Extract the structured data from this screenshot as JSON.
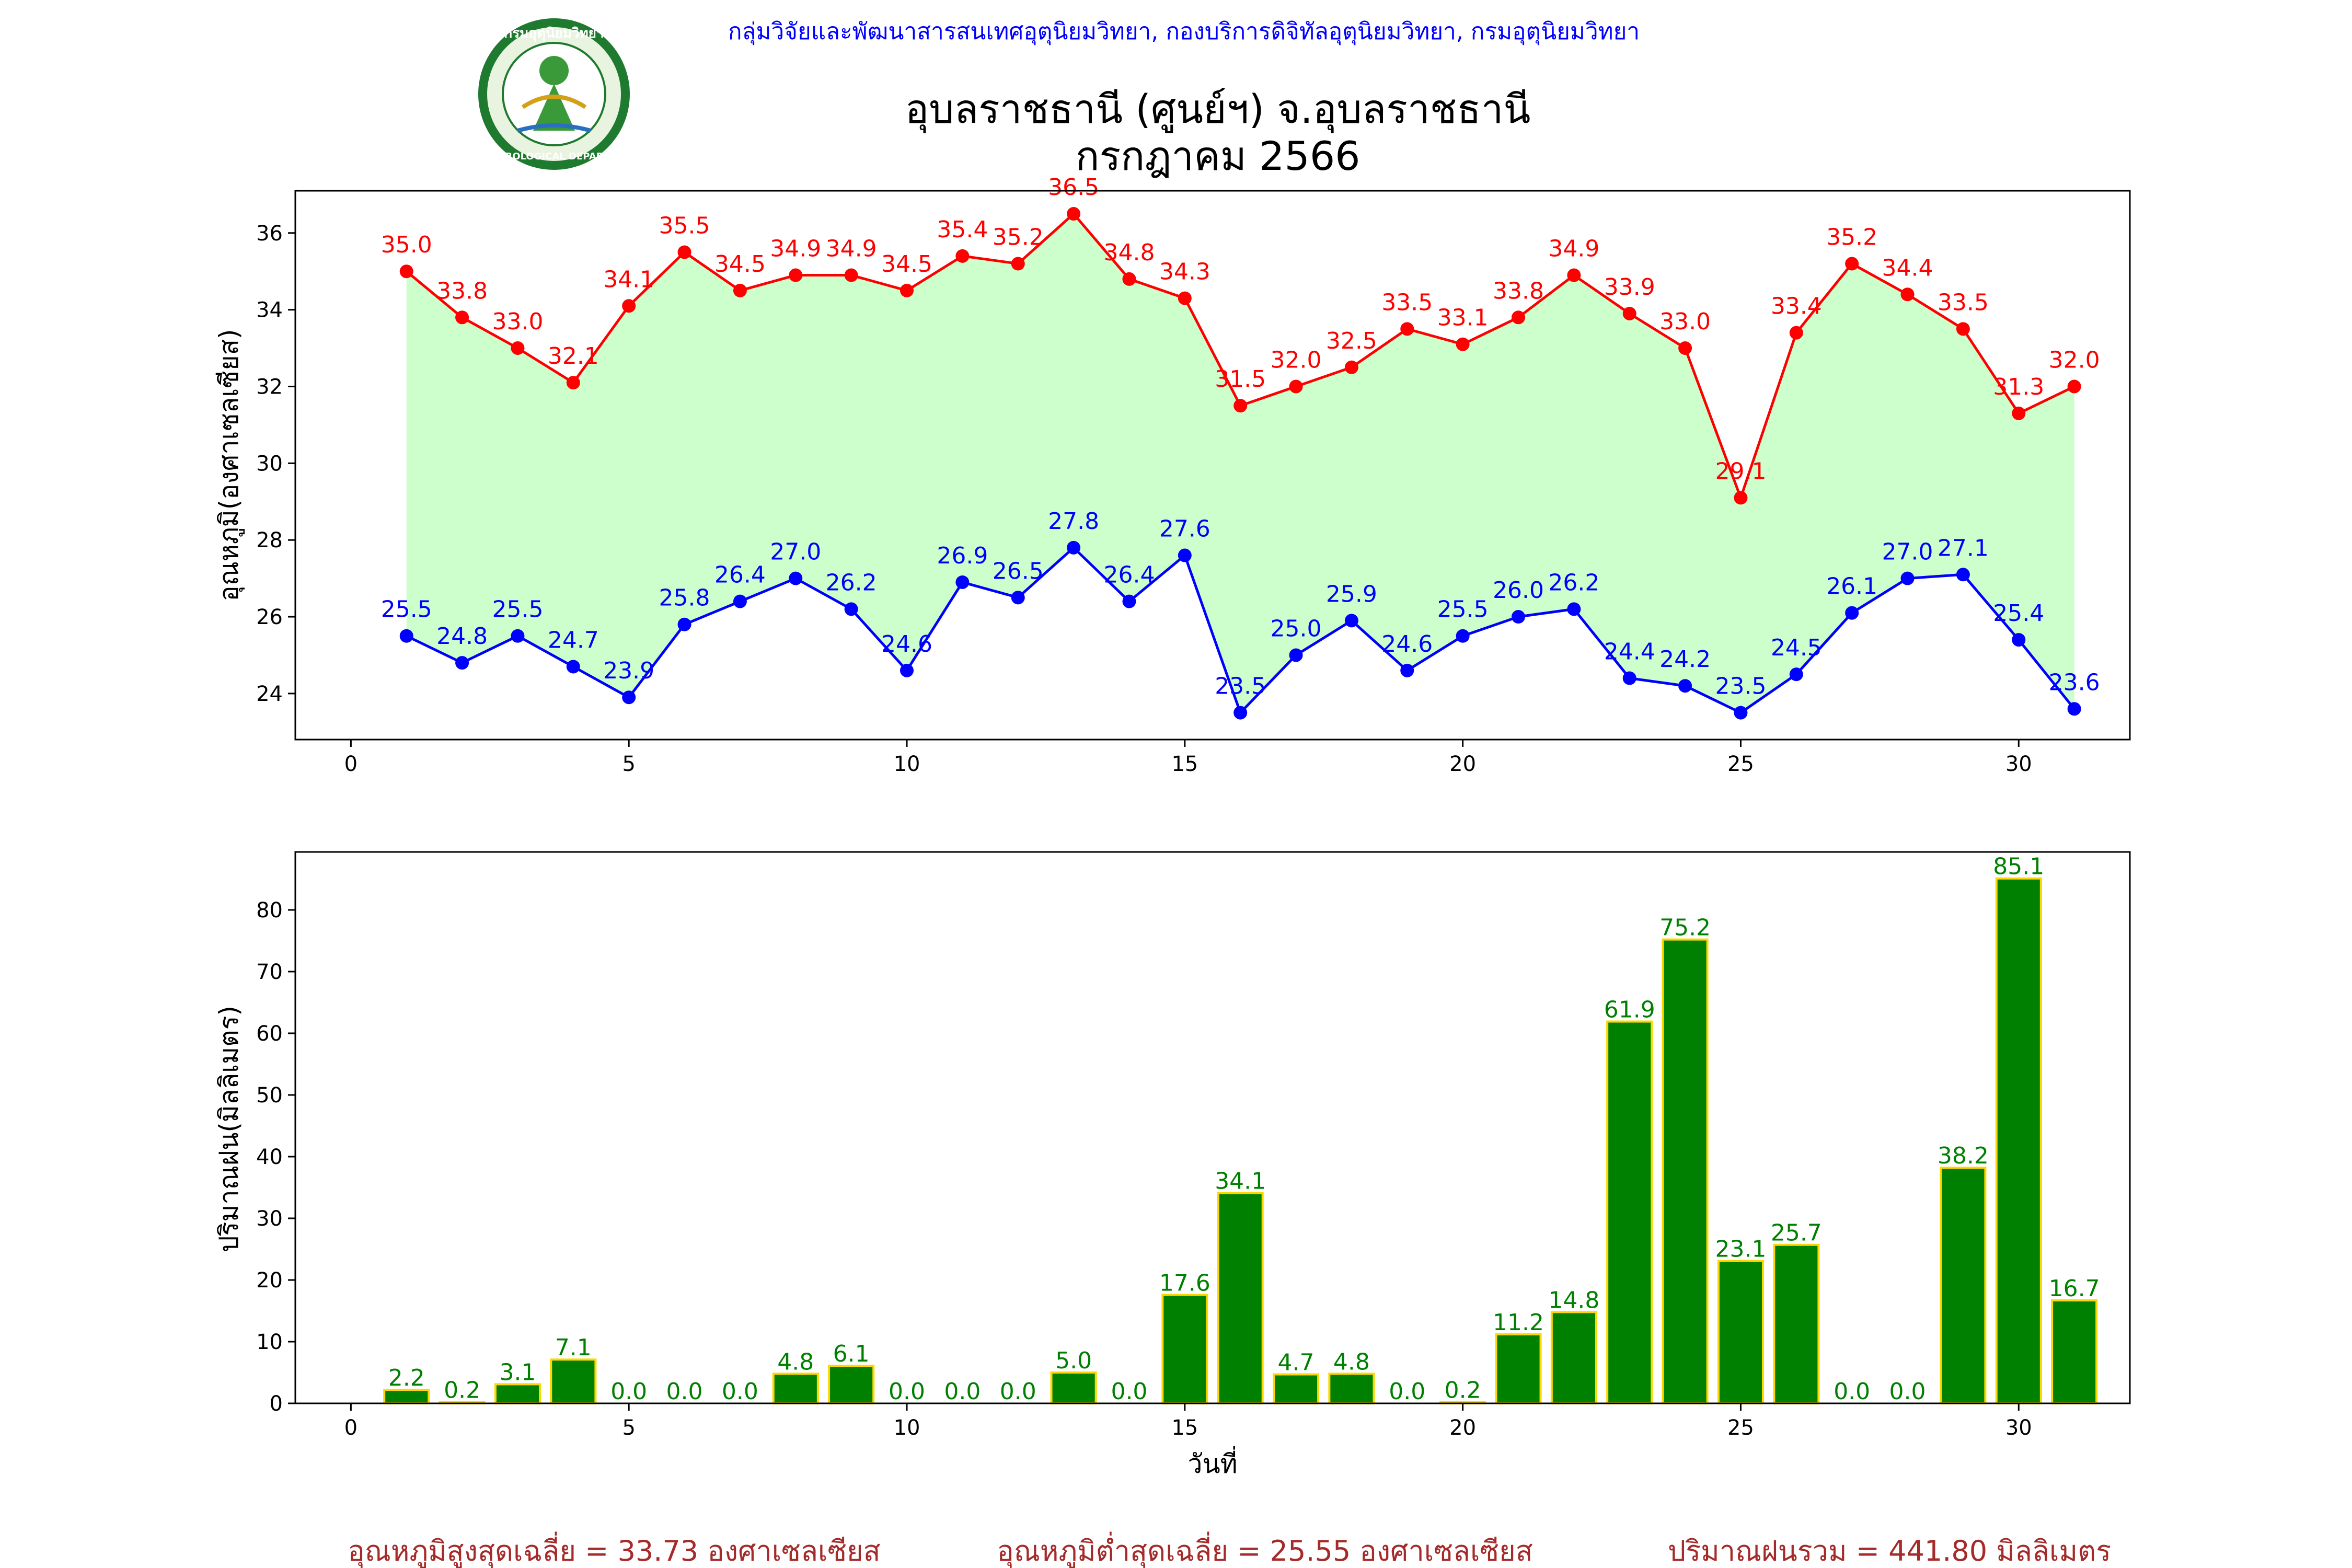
{
  "header": {
    "agency": "กลุ่มวิจัยและพัฒนาสารสนเทศอุตุนิยมวิทยา, กองบริการดิจิทัลอุตุนิยมวิทยา, กรมอุตุนิยมวิทยา",
    "title_line1": "อุบลราชธานี (ศูนย์ฯ) จ.อุบลราชธานี",
    "title_line2": "กรกฎาคม 2566"
  },
  "logo": {
    "text": "กรมอุตุนิยมวิทยา METEOROLOGICAL DEPARTMENT",
    "colors": {
      "ring": "#1e7a2e",
      "inner": "#ffffff",
      "deity": "#3a9a3a",
      "gold": "#d4a017"
    }
  },
  "colors": {
    "max": "#ff0000",
    "min": "#0000ff",
    "fill": "#ccffcc",
    "bar": "#008000",
    "bar_edge": "#ffd700",
    "bar_label": "#008000",
    "header": "#0000ff",
    "summary": "#a52a2a"
  },
  "chart_data": [
    {
      "type": "line",
      "ylabel": "อุณหภูมิ(องศาเซลเซียส)",
      "xlabel": "",
      "xlim": [
        -1,
        32
      ],
      "ylim": [
        22.8,
        37.1
      ],
      "xticks": [
        0,
        5,
        10,
        15,
        20,
        25,
        30
      ],
      "yticks": [
        24,
        26,
        28,
        30,
        32,
        34,
        36
      ],
      "x": [
        1,
        2,
        3,
        4,
        5,
        6,
        7,
        8,
        9,
        10,
        11,
        12,
        13,
        14,
        15,
        16,
        17,
        18,
        19,
        20,
        21,
        22,
        23,
        24,
        25,
        26,
        27,
        28,
        29,
        30,
        31
      ],
      "series": [
        {
          "key": "max",
          "values": [
            35.0,
            33.8,
            33.0,
            32.1,
            34.1,
            35.5,
            34.5,
            34.9,
            34.9,
            34.5,
            35.4,
            35.2,
            36.5,
            34.8,
            34.3,
            31.5,
            32.0,
            32.5,
            33.5,
            33.1,
            33.8,
            34.9,
            33.9,
            33.0,
            29.1,
            33.4,
            35.2,
            34.4,
            33.5,
            31.3,
            32.0
          ]
        },
        {
          "key": "min",
          "values": [
            25.5,
            24.8,
            25.5,
            24.7,
            23.9,
            25.8,
            26.4,
            27.0,
            26.2,
            24.6,
            26.9,
            26.5,
            27.8,
            26.4,
            27.6,
            23.5,
            25.0,
            25.9,
            24.6,
            25.5,
            26.0,
            26.2,
            24.4,
            24.2,
            23.5,
            24.5,
            26.1,
            27.0,
            27.1,
            25.4,
            23.6
          ]
        }
      ],
      "fill_between": true,
      "legend": "none",
      "grid": false
    },
    {
      "type": "bar",
      "ylabel": "ปริมาณฝน(มิลลิเมตร)",
      "xlabel": "วันที่",
      "xlim": [
        -1,
        32
      ],
      "ylim": [
        0,
        89.4
      ],
      "xticks": [
        0,
        5,
        10,
        15,
        20,
        25,
        30
      ],
      "yticks": [
        0,
        10,
        20,
        30,
        40,
        50,
        60,
        70,
        80
      ],
      "x": [
        1,
        2,
        3,
        4,
        5,
        6,
        7,
        8,
        9,
        10,
        11,
        12,
        13,
        14,
        15,
        16,
        17,
        18,
        19,
        20,
        21,
        22,
        23,
        24,
        25,
        26,
        27,
        28,
        29,
        30,
        31
      ],
      "values": [
        2.2,
        0.2,
        3.1,
        7.1,
        0.0,
        0.0,
        0.0,
        4.8,
        6.1,
        0.0,
        0.0,
        0.0,
        5.0,
        0.0,
        17.6,
        34.1,
        4.7,
        4.8,
        0.0,
        0.2,
        11.2,
        14.8,
        61.9,
        75.2,
        23.1,
        25.7,
        0.0,
        0.0,
        38.2,
        85.1,
        16.7
      ],
      "legend": "none",
      "grid": false
    }
  ],
  "summary": {
    "avg_max": "อุณหภูมิสูงสุดเฉลี่ย = 33.73 องศาเซลเซียส",
    "avg_min": "อุณหภูมิต่ำสุดเฉลี่ย = 25.55 องศาเซลเซียส",
    "total_rain": "ปริมาณฝนรวม = 441.80 มิลลิเมตร"
  }
}
